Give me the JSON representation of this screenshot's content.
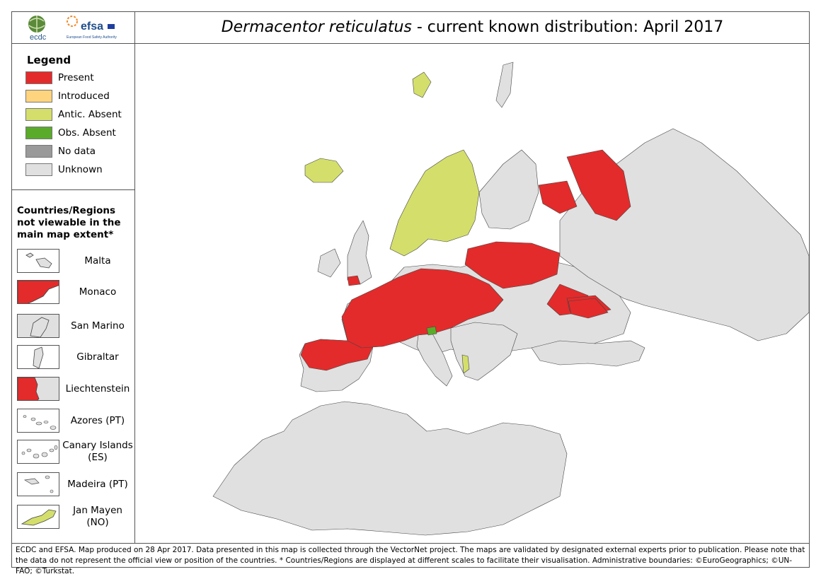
{
  "header": {
    "title_species": "Dermacentor reticulatus",
    "title_rest": " - current known distribution: April 2017",
    "logos": [
      {
        "name": "ecdc-logo",
        "text": "ecdc"
      },
      {
        "name": "efsa-logo",
        "text": "efsa",
        "subtext": "European Food Safety Authority"
      }
    ]
  },
  "legend": {
    "title": "Legend",
    "items": [
      {
        "label": "Present",
        "color": "#e32b2b"
      },
      {
        "label": "Introduced",
        "color": "#fed47f"
      },
      {
        "label": "Antic. Absent",
        "color": "#d4df6b"
      },
      {
        "label": "Obs. Absent",
        "color": "#5aab2a"
      },
      {
        "label": "No data",
        "color": "#9a9a9a"
      },
      {
        "label": "Unknown",
        "color": "#e0e0e0"
      }
    ]
  },
  "insets": {
    "heading": "Countries/Regions not viewable in the main map extent*",
    "items": [
      {
        "label": "Malta",
        "fill": "#e0e0e0",
        "bg": "#ffffff"
      },
      {
        "label": "Monaco",
        "fill": "#e32b2b",
        "bg": "#e0e0e0"
      },
      {
        "label": "San Marino",
        "fill": "#e0e0e0",
        "bg": "#e0e0e0"
      },
      {
        "label": "Gibraltar",
        "fill": "#e0e0e0",
        "bg": "#ffffff"
      },
      {
        "label": "Liechtenstein",
        "fill": "#e32b2b",
        "bg": "#e0e0e0"
      },
      {
        "label": "Azores (PT)",
        "fill": "#e0e0e0",
        "bg": "#ffffff"
      },
      {
        "label": "Canary Islands (ES)",
        "fill": "#e0e0e0",
        "bg": "#ffffff"
      },
      {
        "label": "Madeira (PT)",
        "fill": "#e0e0e0",
        "bg": "#ffffff"
      },
      {
        "label": "Jan Mayen (NO)",
        "fill": "#d4df6b",
        "bg": "#ffffff"
      }
    ]
  },
  "map": {
    "colors": {
      "present": "#e32b2b",
      "antic_absent": "#d4df6b",
      "obs_absent": "#5aab2a",
      "unknown": "#e0e0e0",
      "border": "#444444"
    }
  },
  "footer": {
    "text": "ECDC and EFSA. Map produced on 28 Apr 2017. Data presented in this map is collected through the VectorNet project. The maps are validated by designated external experts prior to publication. Please note that the data do not represent the official view or position of the countries. * Countries/Regions are displayed at different scales to facilitate their visualisation. Administrative boundaries: ©EuroGeographics; ©UN-FAO; ©Turkstat."
  }
}
